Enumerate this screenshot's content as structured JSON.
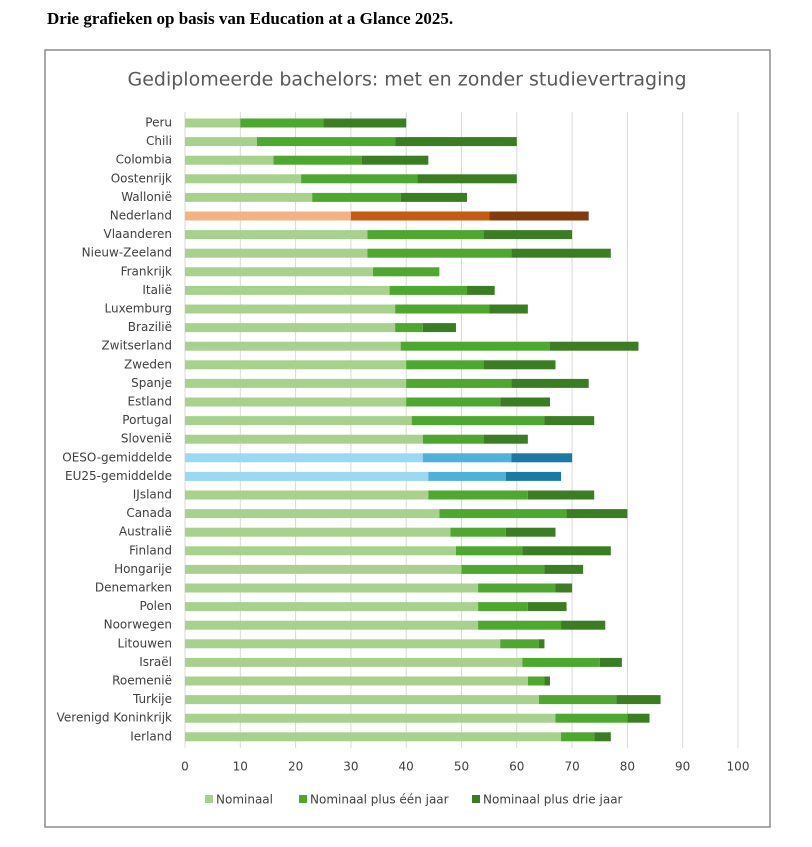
{
  "page_title": "Drie grafieken op basis van Education at a Glance 2025.",
  "chart_data": {
    "type": "stacked-barh",
    "title": "Gediplomeerde bachelors: met en zonder studievertraging",
    "categories": [
      "Peru",
      "Chili",
      "Colombia",
      "Oostenrijk",
      "Wallonië",
      "Nederland",
      "Vlaanderen",
      "Nieuw-Zeeland",
      "Frankrijk",
      "Italië",
      "Luxemburg",
      "Brazilië",
      "Zwitserland",
      "Zweden",
      "Spanje",
      "Estland",
      "Portugal",
      "Slovenië",
      "OESO-gemiddelde",
      "EU25-gemiddelde",
      "IJsland",
      "Canada",
      "Australië",
      "Finland",
      "Hongarije",
      "Denemarken",
      "Polen",
      "Noorwegen",
      "Litouwen",
      "Israël",
      "Roemenië",
      "Turkije",
      "Verenigd Koninkrijk",
      "Ierland"
    ],
    "series": [
      {
        "name": "Nominaal",
        "color": "#a9d18e",
        "point_colors": {
          "5": "#f4b183",
          "18": "#9bd8f2",
          "19": "#9bd8f2"
        },
        "values": [
          10,
          13,
          16,
          21,
          23,
          30,
          33,
          33,
          34,
          37,
          38,
          38,
          39,
          40,
          40,
          40,
          41,
          43,
          43,
          44,
          44,
          46,
          48,
          49,
          50,
          53,
          53,
          53,
          57,
          61,
          62,
          64,
          67,
          68
        ]
      },
      {
        "name": "Nominaal plus één jaar",
        "color": "#4ea72e",
        "point_colors": {
          "5": "#c55a11",
          "18": "#4fb1d8",
          "19": "#4fb1d8"
        },
        "values": [
          15,
          25,
          16,
          21,
          16,
          25,
          21,
          26,
          12,
          14,
          17,
          5,
          27,
          14,
          19,
          17,
          24,
          11,
          16,
          14,
          18,
          23,
          10,
          12,
          15,
          14,
          9,
          15,
          7,
          14,
          3,
          14,
          13,
          6
        ]
      },
      {
        "name": "Nominaal plus drie jaar",
        "color": "#3b7d23",
        "point_colors": {
          "5": "#843c0c",
          "18": "#1a7aa3",
          "19": "#1a7aa3"
        },
        "values": [
          15,
          22,
          12,
          18,
          12,
          18,
          16,
          18,
          null,
          5,
          7,
          6,
          16,
          13,
          14,
          9,
          9,
          8,
          11,
          10,
          12,
          11,
          9,
          16,
          7,
          3,
          7,
          8,
          1,
          4,
          1,
          8,
          4,
          3
        ]
      }
    ],
    "xlim": [
      0,
      100
    ],
    "xticks": [
      0,
      10,
      20,
      30,
      40,
      50,
      60,
      70,
      80,
      90,
      100
    ],
    "grid": true,
    "legend": "bottom"
  }
}
